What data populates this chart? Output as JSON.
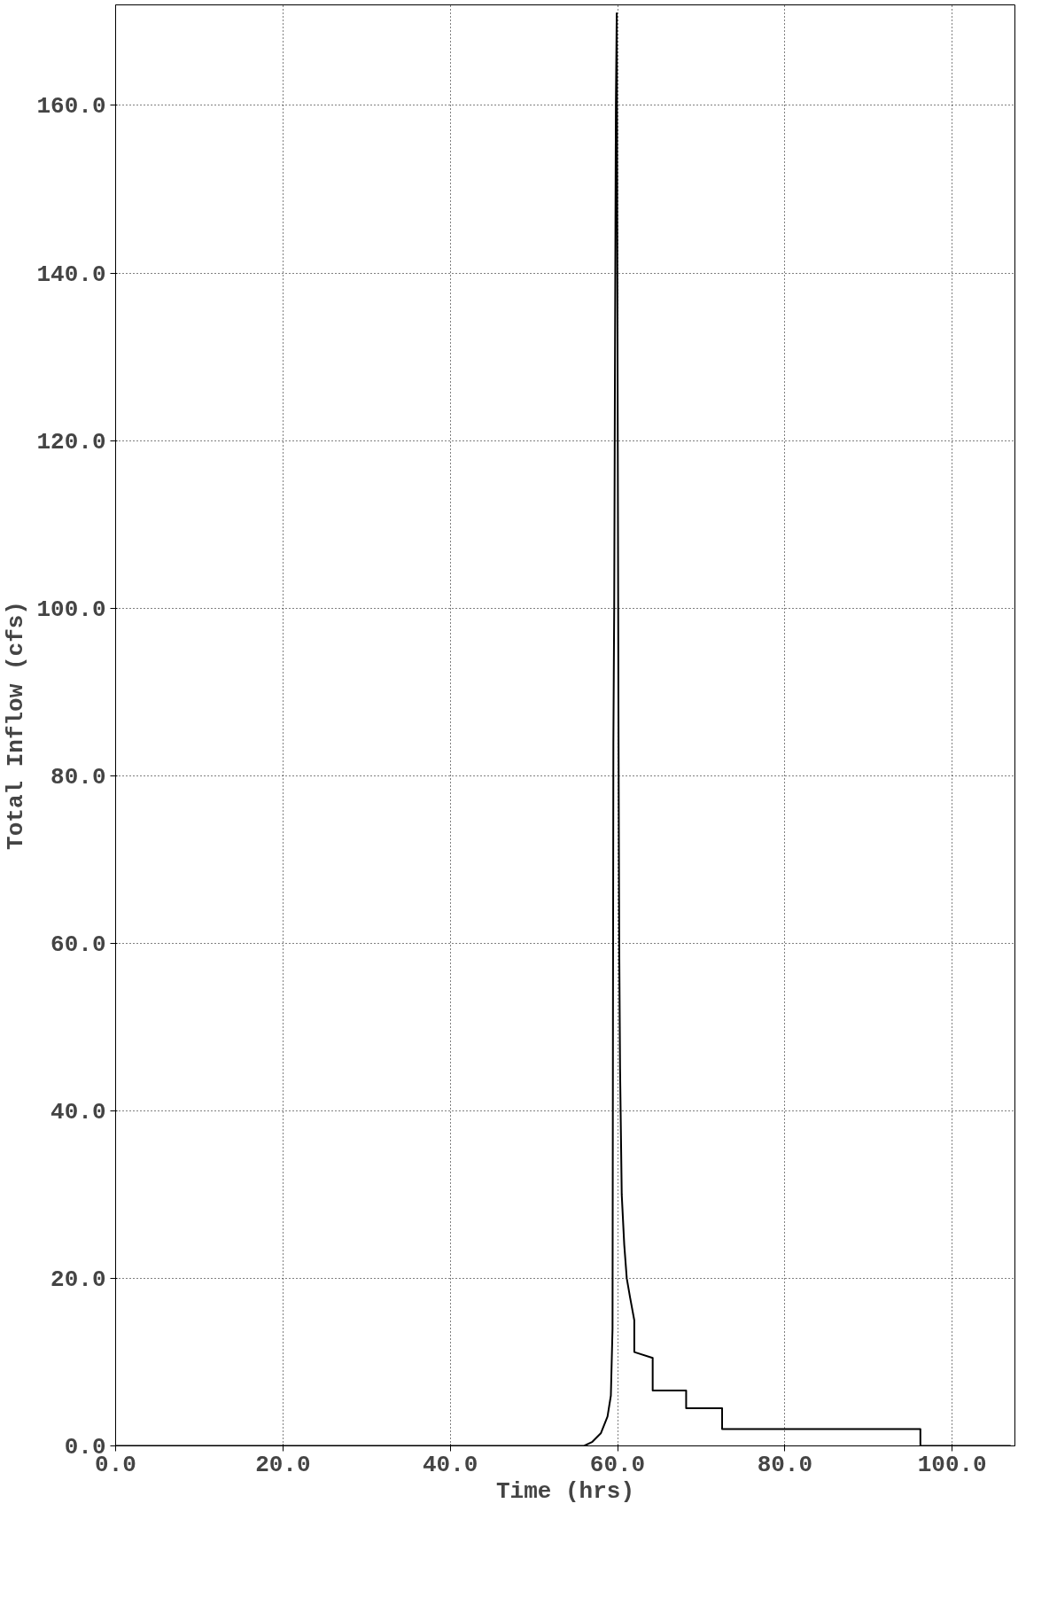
{
  "chart_data": {
    "type": "line",
    "xlabel": "Time (hrs)",
    "ylabel": "Total Inflow (cfs)",
    "x": [
      0,
      56.0,
      57.0,
      58.0,
      58.8,
      59.2,
      59.4,
      59.45,
      59.5,
      59.6,
      59.7,
      59.8,
      59.9,
      60.0,
      60.1,
      60.2,
      60.3,
      60.5,
      60.8,
      61.1,
      61.5,
      62.0,
      62.0,
      64.2,
      64.2,
      68.2,
      68.2,
      72.5,
      72.5,
      96.2,
      96.2,
      107
    ],
    "series": [
      {
        "color": "#000000",
        "values": [
          0,
          0,
          0.5,
          1.5,
          3.5,
          6,
          14,
          50,
          84,
          100,
          132,
          160,
          171,
          130,
          90,
          60,
          45,
          30,
          24,
          20,
          17.7,
          15,
          11.2,
          10.5,
          6.6,
          6.6,
          4.5,
          4.5,
          2.0,
          2.0,
          0,
          0
        ]
      }
    ],
    "xlim": [
      0,
      107.5
    ],
    "ylim": [
      0,
      172
    ],
    "xticks": [
      {
        "value": 0,
        "label": "0.0"
      },
      {
        "value": 20,
        "label": "20.0"
      },
      {
        "value": 40,
        "label": "40.0"
      },
      {
        "value": 60,
        "label": "60.0"
      },
      {
        "value": 80,
        "label": "80.0"
      },
      {
        "value": 100,
        "label": "100.0"
      }
    ],
    "yticks": [
      {
        "value": 0,
        "label": "0.0"
      },
      {
        "value": 20,
        "label": "20.0"
      },
      {
        "value": 40,
        "label": "40.0"
      },
      {
        "value": 60,
        "label": "60.0"
      },
      {
        "value": 80,
        "label": "80.0"
      },
      {
        "value": 100,
        "label": "100.0"
      },
      {
        "value": 120,
        "label": "120.0"
      },
      {
        "value": 140,
        "label": "140.0"
      },
      {
        "value": 160,
        "label": "160.0"
      }
    ],
    "grid": true,
    "line_style": "solid"
  }
}
